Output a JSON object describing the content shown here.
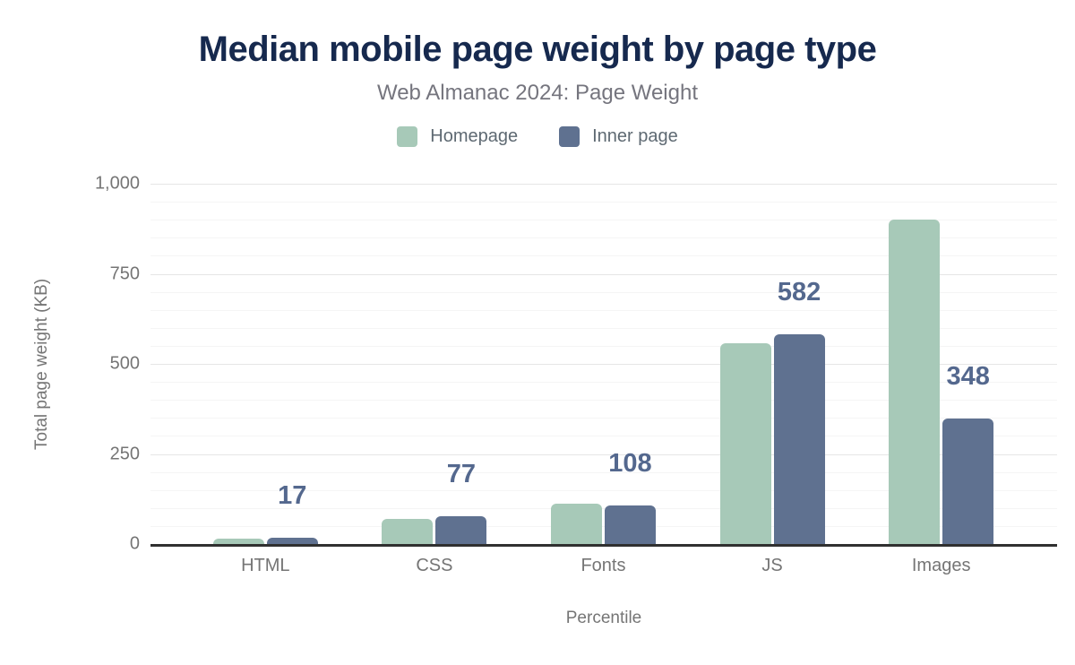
{
  "figure": {
    "title": "Median mobile page weight by page type",
    "subtitle": "Web Almanac 2024: Page Weight"
  },
  "chart_data": {
    "type": "bar",
    "title": "Median mobile page weight by page type",
    "subtitle": "Web Almanac 2024: Page Weight",
    "categories": [
      "HTML",
      "CSS",
      "Fonts",
      "JS",
      "Images"
    ],
    "series": [
      {
        "name": "Homepage",
        "color": "#a7c9b8",
        "values": [
          15,
          70,
          112,
          557,
          900
        ]
      },
      {
        "name": "Inner page",
        "color": "#5f7190",
        "values": [
          17,
          77,
          108,
          582,
          348
        ],
        "data_labels": [
          "17",
          "77",
          "108",
          "582",
          "348"
        ]
      }
    ],
    "xlabel": "Percentile",
    "ylabel": "Total page weight (KB)",
    "ylim": [
      0,
      1000
    ],
    "yticks": [
      {
        "value": 0,
        "label": "0"
      },
      {
        "value": 250,
        "label": "250"
      },
      {
        "value": 500,
        "label": "500"
      },
      {
        "value": 750,
        "label": "750"
      },
      {
        "value": 1000,
        "label": "1,000"
      }
    ],
    "grid": {
      "on": true,
      "major_step": 250,
      "minor_step": 50
    },
    "legend_position": "top",
    "data_label_color": "#54688e"
  },
  "colors": {
    "title": "#16294e",
    "subtitle": "#75757e",
    "axis_text": "#757575",
    "axis_line": "#303030",
    "gridline_major": "#e6e6e6",
    "gridline_minor": "#f5f5f5",
    "background": "#ffffff"
  }
}
